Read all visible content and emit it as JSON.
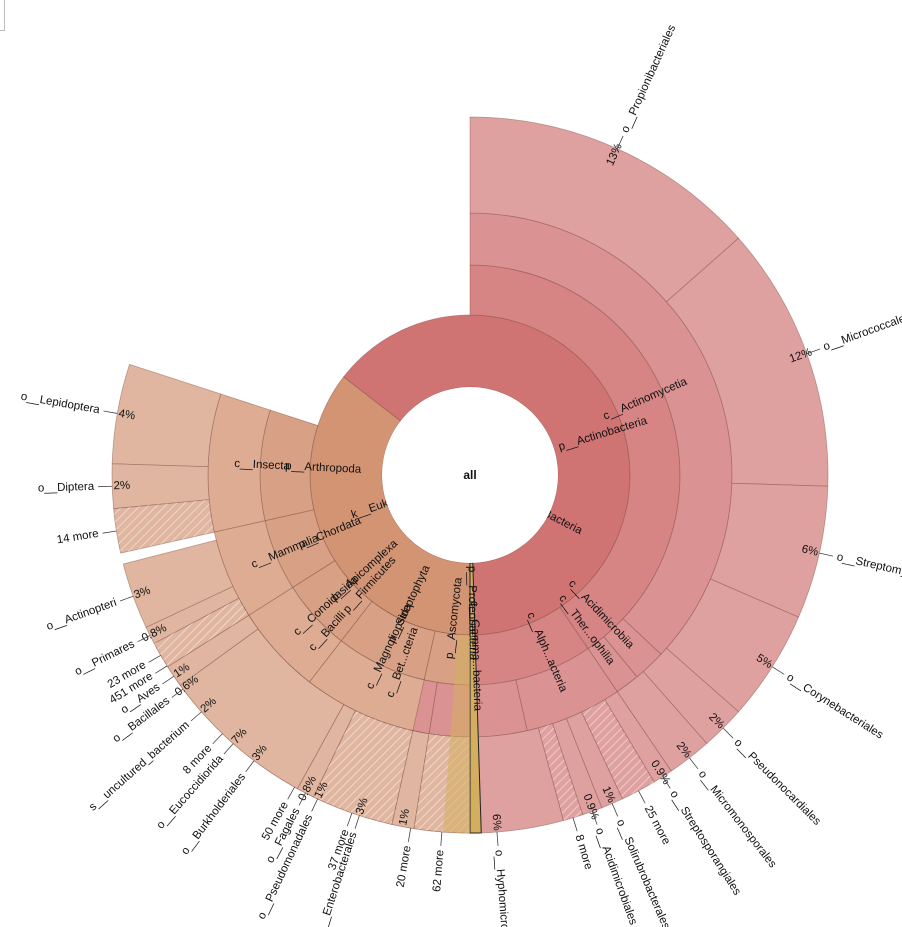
{
  "chart_data": {
    "type": "sunburst",
    "center_label": "all",
    "colors": {
      "bacteria": "#d07373",
      "eukaryota": "#d39474",
      "yellow": "#d4ae5f",
      "white": "#ffffff"
    },
    "rings": {
      "superkingdom": [
        {
          "label": "k__Bacteria",
          "start": 0.355,
          "end": 0.995
        },
        {
          "label": "k__Eukaryota",
          "start": 0.0,
          "end": 0.355
        }
      ],
      "phylum": [
        {
          "label": "p__Actinobacteria",
          "start": 0.5,
          "end": 0.905
        },
        {
          "label": "p__Proteobacteria",
          "start": 0.905,
          "end": 1.09
        },
        {
          "label": "p__Firmicutes",
          "start": 1.09,
          "end": 1.145
        },
        {
          "label": "p__Arthropoda",
          "start": 0.215,
          "end": 0.3
        },
        {
          "label": "p__Chordata",
          "start": 0.16,
          "end": 0.215
        },
        {
          "label": "p__Apicomplexa",
          "start": 0.105,
          "end": 0.16
        },
        {
          "label": "p__Streptophyta",
          "start": 0.035,
          "end": 0.105
        },
        {
          "label": "p__Ascomycota",
          "start": 0.0,
          "end": 0.035
        }
      ],
      "class": [
        {
          "label": "c__Actinomycetia",
          "start": 0.5,
          "end": 0.87
        },
        {
          "label": "c__Acidimicrobiia",
          "start": 0.87,
          "end": 0.89
        },
        {
          "label": "c__Ther...ophilia",
          "start": 0.89,
          "end": 0.905
        },
        {
          "label": "c__Alph...acteria",
          "start": 0.905,
          "end": 0.965
        },
        {
          "label": "c__Gamma...bacteria",
          "start": 0.965,
          "end": 1.025
        },
        {
          "label": "c__Bet...cteria",
          "start": 1.025,
          "end": 1.085
        },
        {
          "label": "c__Bacilli",
          "start": 1.09,
          "end": 1.145
        },
        {
          "label": "c__Insecta",
          "start": 0.215,
          "end": 0.3
        },
        {
          "label": "c__Mammalia",
          "start": 0.16,
          "end": 0.215
        },
        {
          "label": "c__Conoidasida",
          "start": 0.105,
          "end": 0.16
        },
        {
          "label": "c__Magnoliopsida",
          "start": 0.035,
          "end": 0.105
        }
      ],
      "order": [
        {
          "label": "o__Propionibacteriales",
          "pct": "13%",
          "start": 0.5,
          "end": 0.635
        },
        {
          "label": "o__Micrococcales",
          "pct": "12%",
          "start": 0.635,
          "end": 0.755
        },
        {
          "label": "o__Streptomycetales",
          "pct": "6%",
          "start": 0.755,
          "end": 0.815
        },
        {
          "label": "o__Corynebacteriales",
          "pct": "5%",
          "start": 0.815,
          "end": 0.865
        },
        {
          "label": "o__Pseudonocardiales",
          "pct": "2%",
          "start": 0.865,
          "end": 0.885
        },
        {
          "label": "o__Micromonosporales",
          "pct": "2%",
          "start": 0.885,
          "end": 0.905
        },
        {
          "label": "o__Streptosporangiales",
          "pct": "0.9%",
          "start": 0.905,
          "end": 0.914
        },
        {
          "label": "25 more",
          "pct": "",
          "start": 0.914,
          "end": 0.93,
          "hatched": true
        },
        {
          "label": "o__Solirubrobacterales",
          "pct": "1%",
          "start": 0.93,
          "end": 0.94
        },
        {
          "label": "o__Acidimicrobiales",
          "pct": "0.9%",
          "start": 0.94,
          "end": 0.949
        },
        {
          "label": "8 more",
          "pct": "",
          "start": 0.949,
          "end": 0.958,
          "hatched": true
        },
        {
          "label": "o__Hyphomicrobiales",
          "pct": "6%",
          "start": 0.958,
          "end": 1.018
        },
        {
          "label": "20 more",
          "pct": "",
          "start": 1.018,
          "end": 1.035,
          "hatched": true
        },
        {
          "label": "o__Enterobacterales",
          "pct": "3%",
          "start": 1.035,
          "end": 1.065
        },
        {
          "label": "o__Pseudomonadales",
          "pct": "1%",
          "start": 1.065,
          "end": 1.075
        },
        {
          "label": "50 more",
          "pct": "",
          "start": 1.075,
          "end": 1.088,
          "hatched": true
        },
        {
          "label": "o__Burkholderiales",
          "pct": "3%",
          "start": 1.088,
          "end": 1.118
        },
        {
          "label": "8 more",
          "pct": "",
          "start": 1.118,
          "end": 1.125,
          "hatched": true
        },
        {
          "label": "s__uncultured_bacterium",
          "pct": "2%",
          "start": 1.125,
          "end": 1.145
        },
        {
          "label": "o__Bacillales",
          "pct": "0.6%",
          "start": 1.145,
          "end": 1.151
        },
        {
          "label": "451 more",
          "pct": "",
          "start": 1.151,
          "end": 1.17,
          "hatched": true
        },
        {
          "label": "o__Lepidoptera",
          "pct": "4%",
          "start": 0.255,
          "end": 0.3
        },
        {
          "label": "o__Diptera",
          "pct": "2%",
          "start": 0.235,
          "end": 0.255
        },
        {
          "label": "14 more",
          "pct": "",
          "start": 0.215,
          "end": 0.235,
          "hatched": true
        },
        {
          "label": "o__Actinopteri",
          "pct": "3%",
          "start": 0.18,
          "end": 0.21
        },
        {
          "label": "o__Primares",
          "pct": "0.8%",
          "start": 0.172,
          "end": 0.18
        },
        {
          "label": "23 more",
          "pct": "",
          "start": 0.16,
          "end": 0.172,
          "hatched": true
        },
        {
          "label": "o__Aves",
          "pct": "1%",
          "start": 0.15,
          "end": 0.16
        },
        {
          "label": "o__Eucoccidiorida",
          "pct": "7%",
          "start": 0.08,
          "end": 0.15
        },
        {
          "label": "o__Fagales",
          "pct": "0.8%",
          "start": 0.072,
          "end": 0.08
        },
        {
          "label": "37 more",
          "pct": "",
          "start": 0.035,
          "end": 0.072,
          "hatched": true
        },
        {
          "label": "",
          "pct": "1%",
          "start": 0.025,
          "end": 0.035
        },
        {
          "label": "62 more",
          "pct": "",
          "start": 0.0,
          "end": 0.025,
          "hatched": true
        }
      ]
    }
  }
}
